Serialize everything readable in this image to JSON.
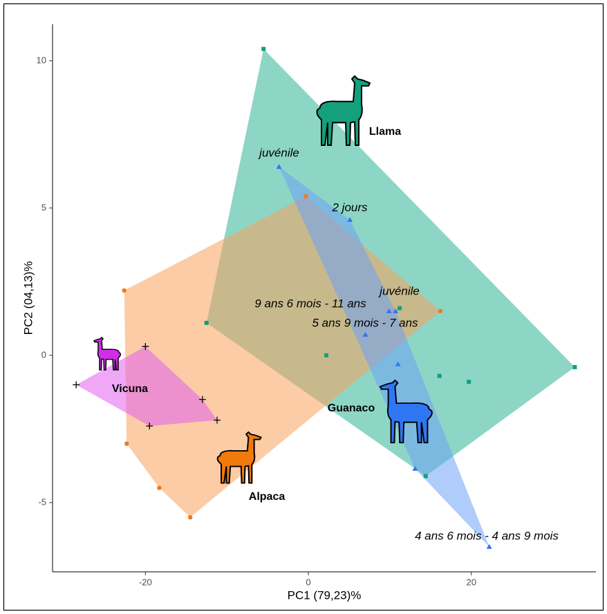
{
  "chart_data": {
    "type": "scatter",
    "x_label": "PC1 (79,23)%",
    "y_label": "PC2 (04,13)%",
    "xlim": [
      -31.4,
      35.3
    ],
    "ylim": [
      -7.35,
      11.24
    ],
    "xticks": [
      -20,
      0,
      20
    ],
    "yticks": [
      -5,
      0,
      5,
      10
    ],
    "grid": false,
    "series": [
      {
        "name": "Llama",
        "marker": "square",
        "color": "#14a07c",
        "hull_color": "#2fb597",
        "x": [
          -5.5,
          -12.5,
          2.2,
          11.2,
          16.1,
          19.7,
          32.7,
          14.4
        ],
        "values": [
          10.4,
          1.1,
          0.0,
          1.6,
          -0.7,
          -0.9,
          -0.4,
          -4.1
        ]
      },
      {
        "name": "Alpaca",
        "marker": "circle",
        "color": "#f07a1a",
        "hull_color": "#f9a35c",
        "x": [
          -0.3,
          16.2,
          -22.6,
          -22.3,
          -18.3,
          -14.5
        ],
        "values": [
          5.4,
          1.5,
          2.2,
          -3.0,
          -4.5,
          -5.5
        ]
      },
      {
        "name": "Vicuna",
        "marker": "plus",
        "color": "#000000",
        "hull_color": "#e060ee",
        "x": [
          -28.5,
          -20.0,
          -13.0,
          -11.2,
          -19.5
        ],
        "values": [
          -1.0,
          0.3,
          -1.5,
          -2.2,
          -2.4
        ]
      },
      {
        "name": "Guanaco",
        "marker": "triangle",
        "color": "#3574f0",
        "hull_color": "#6ea2f6",
        "x": [
          -3.6,
          5.1,
          9.9,
          10.7,
          7.0,
          11.0,
          13.1,
          22.2
        ],
        "values": [
          6.4,
          4.6,
          1.5,
          1.5,
          0.7,
          -0.3,
          -3.85,
          -6.5
        ]
      }
    ],
    "annotations": [
      "juvénile",
      "2 jours",
      "juvénile",
      "9 ans 6 mois - 11 ans",
      "5 ans 9 mois - 7 ans",
      "4 ans 6 mois - 4 ans 9 mois"
    ]
  }
}
